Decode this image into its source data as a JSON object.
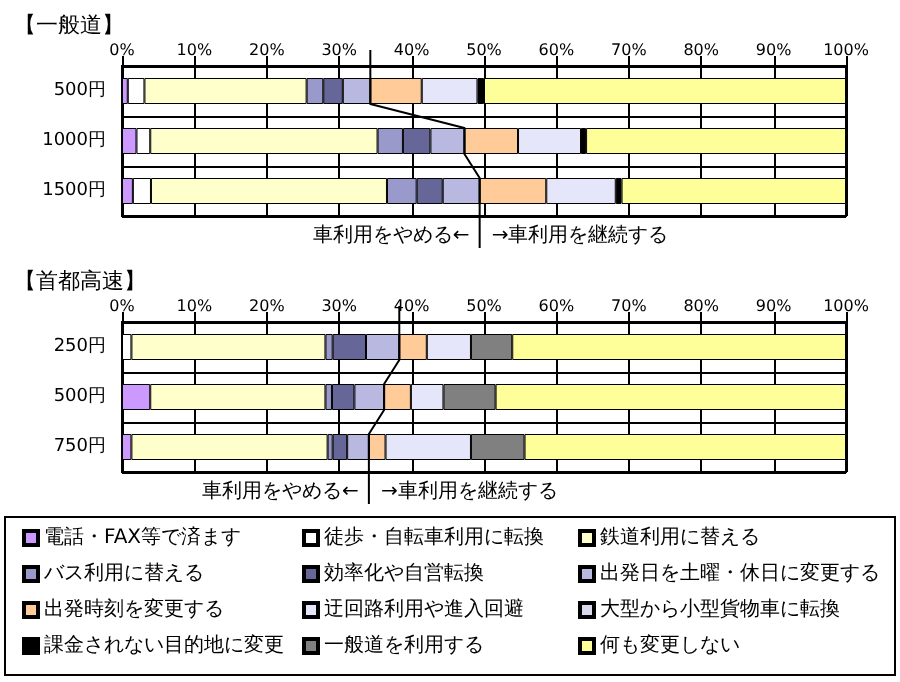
{
  "chart_data": [
    {
      "type": "bar",
      "orientation": "horizontal",
      "stacked": true,
      "title": "【一般道】",
      "categories": [
        "500円",
        "1000円",
        "1500円"
      ],
      "xlim": [
        0,
        100
      ],
      "xticks": [
        {
          "value": 0,
          "label": "0%"
        },
        {
          "value": 10,
          "label": "10%"
        },
        {
          "value": 20,
          "label": "20%"
        },
        {
          "value": 30,
          "label": "30%"
        },
        {
          "value": 40,
          "label": "40%"
        },
        {
          "value": 50,
          "label": "50%"
        },
        {
          "value": 60,
          "label": "60%"
        },
        {
          "value": 70,
          "label": "70%"
        },
        {
          "value": 80,
          "label": "80%"
        },
        {
          "value": 90,
          "label": "90%"
        },
        {
          "value": 100,
          "label": "100%"
        }
      ],
      "grid": true,
      "legend": false,
      "annotations": [
        "車利用をやめる←",
        "→車利用を継続する"
      ],
      "series": [
        {
          "color": "#cc99ff",
          "values": [
            0.8,
            2.0,
            1.5
          ]
        },
        {
          "color": "#ffffff",
          "values": [
            2.3,
            1.9,
            2.5
          ]
        },
        {
          "color": "#ffffcc",
          "values": [
            22.4,
            31.4,
            32.6
          ]
        },
        {
          "color": "#9999cc",
          "values": [
            2.3,
            3.5,
            4.1
          ]
        },
        {
          "color": "#666699",
          "values": [
            2.7,
            3.8,
            3.6
          ]
        },
        {
          "color": "#b8b8e0",
          "values": [
            3.8,
            4.7,
            5.1
          ]
        },
        {
          "color": "#ffcc99",
          "values": [
            7.1,
            7.4,
            9.2
          ]
        },
        {
          "color": "#e6e6fa",
          "values": [
            7.7,
            8.7,
            9.6
          ]
        },
        {
          "color": "#d8d8ec",
          "values": [
            0,
            0,
            0
          ]
        },
        {
          "color": "#000000",
          "values": [
            0.9,
            0.7,
            0.8
          ]
        },
        {
          "color": "#808080",
          "values": [
            0,
            0,
            0
          ]
        },
        {
          "color": "#ffff99",
          "values": [
            50.0,
            35.9,
            31.0
          ]
        }
      ]
    },
    {
      "type": "bar",
      "orientation": "horizontal",
      "stacked": true,
      "title": "【首都高速】",
      "categories": [
        "250円",
        "500円",
        "750円"
      ],
      "xlim": [
        0,
        100
      ],
      "xticks": [
        {
          "value": 0,
          "label": "0%"
        },
        {
          "value": 10,
          "label": "10%"
        },
        {
          "value": 20,
          "label": "20%"
        },
        {
          "value": 30,
          "label": "30%"
        },
        {
          "value": 40,
          "label": "40%"
        },
        {
          "value": 50,
          "label": "50%"
        },
        {
          "value": 60,
          "label": "60%"
        },
        {
          "value": 70,
          "label": "70%"
        },
        {
          "value": 80,
          "label": "80%"
        },
        {
          "value": 90,
          "label": "90%"
        },
        {
          "value": 100,
          "label": "100%"
        }
      ],
      "grid": true,
      "legend": "bottom",
      "annotations": [
        "車利用をやめる←",
        "→車利用を継続する"
      ],
      "series": [
        {
          "name": "電話・FAX等で済ます",
          "color": "#cc99ff",
          "values": [
            0,
            3.9,
            1.3
          ]
        },
        {
          "name": "徒歩・自転車利用に転換",
          "color": "#ffffff",
          "values": [
            1.3,
            0,
            0
          ]
        },
        {
          "name": "鉄道利用に替える",
          "color": "#ffffcc",
          "values": [
            26.8,
            24.2,
            27.1
          ]
        },
        {
          "name": "バス利用に替える",
          "color": "#9999cc",
          "values": [
            1.0,
            0.9,
            0.7
          ]
        },
        {
          "name": "効率化や自営転換",
          "color": "#666699",
          "values": [
            4.6,
            3.1,
            2.0
          ]
        },
        {
          "name": "出発日を土曜・休日に変更する",
          "color": "#b8b8e0",
          "values": [
            4.6,
            4.1,
            3.0
          ]
        },
        {
          "name": "出発時刻を変更する",
          "color": "#ffcc99",
          "values": [
            3.8,
            3.7,
            2.3
          ]
        },
        {
          "name": "迂回路利用や進入回避",
          "color": "#e6e6fa",
          "values": [
            6.1,
            4.5,
            11.8
          ]
        },
        {
          "name": "大型から小型貨物車に転換",
          "color": "#d8d8ec",
          "values": [
            0,
            0,
            0
          ]
        },
        {
          "name": "課金されない目的地に変更",
          "color": "#000000",
          "values": [
            0,
            0,
            0
          ]
        },
        {
          "name": "一般道を利用する",
          "color": "#808080",
          "values": [
            5.7,
            7.2,
            7.4
          ]
        },
        {
          "name": "何も変更しない",
          "color": "#ffff99",
          "values": [
            46.1,
            48.4,
            44.4
          ]
        }
      ]
    }
  ]
}
